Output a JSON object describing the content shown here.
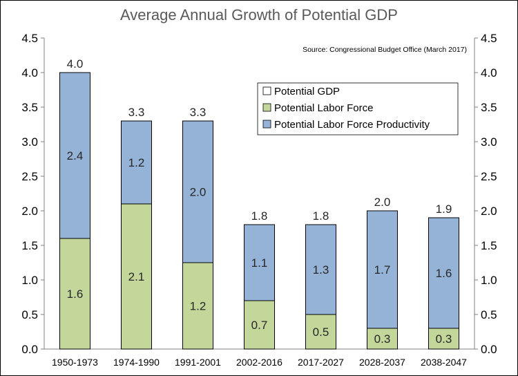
{
  "chart_data": {
    "type": "bar",
    "stacked": true,
    "title": "Average Annual Growth of Potential GDP",
    "source": "Source: Congressional Budget Office (March 2017)",
    "categories": [
      "1950-1973",
      "1974-1990",
      "1991-2001",
      "2002-2016",
      "2017-2027",
      "2028-2037",
      "2038-2047"
    ],
    "series": [
      {
        "name": "Potential Labor Force",
        "color": "#c4d79b",
        "values": [
          1.6,
          2.1,
          1.25,
          0.7,
          0.5,
          0.3,
          0.3
        ],
        "labels": [
          "1.6",
          "2.1",
          "1.2",
          "0.7",
          "0.5",
          "0.3",
          "0.3"
        ]
      },
      {
        "name": "Potential Labor Force Productivity",
        "color": "#95b3d7",
        "values": [
          2.4,
          1.2,
          2.05,
          1.1,
          1.3,
          1.7,
          1.6
        ],
        "labels": [
          "2.4",
          "1.2",
          "2.0",
          "1.1",
          "1.3",
          "1.7",
          "1.6"
        ]
      }
    ],
    "totals": {
      "name": "Potential GDP",
      "color": "#ffffff",
      "values": [
        4.0,
        3.3,
        3.3,
        1.8,
        1.8,
        2.0,
        1.9
      ],
      "labels": [
        "4.0",
        "3.3",
        "3.3",
        "1.8",
        "1.8",
        "2.0",
        "1.9"
      ]
    },
    "ylim": [
      0,
      4.5
    ],
    "yticks": [
      "0.0",
      "0.5",
      "1.0",
      "1.5",
      "2.0",
      "2.5",
      "3.0",
      "3.5",
      "4.0",
      "4.5"
    ],
    "ytick_values": [
      0,
      0.5,
      1.0,
      1.5,
      2.0,
      2.5,
      3.0,
      3.5,
      4.0,
      4.5
    ],
    "y2ticks": [
      "0.0",
      "0.5",
      "1.0",
      "1.5",
      "2.0",
      "2.5",
      "3.0",
      "3.5",
      "4.0",
      "4.5"
    ],
    "legend_position": "top-right",
    "grid": false
  }
}
